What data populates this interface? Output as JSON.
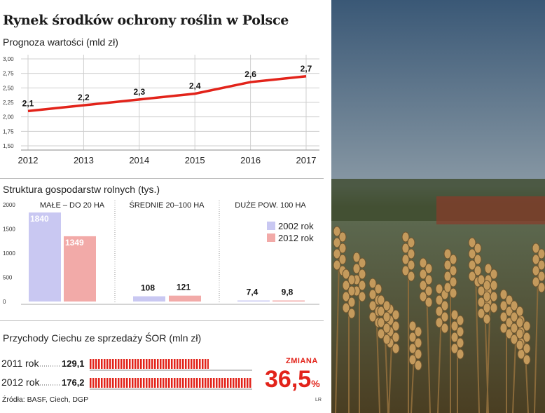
{
  "title": "Rynek środków ochrony roślin w Polsce",
  "colors": {
    "accent": "#e2231a",
    "bar2002": "#c9c8f2",
    "bar2012": "#f2aaa8",
    "line": "#e2231a"
  },
  "chart_data": [
    {
      "type": "line",
      "title": "Prognoza wartości (mld zł)",
      "x": [
        "2012",
        "2013",
        "2014",
        "2015",
        "2016",
        "2017"
      ],
      "y": [
        2.1,
        2.2,
        2.3,
        2.4,
        2.6,
        2.7
      ],
      "data_labels": [
        "2,1",
        "2,2",
        "2,3",
        "2,4",
        "2,6",
        "2,7"
      ],
      "yticks": [
        "1,50",
        "1,75",
        "2,00",
        "2,25",
        "2,50",
        "2,75",
        "3,00"
      ],
      "ylim": [
        1.5,
        3.0
      ],
      "grid": true
    },
    {
      "type": "bar",
      "title": "Struktura gospodarstw rolnych (tys.)",
      "categories": [
        "MAŁE – DO 20 HA",
        "ŚREDNIE 20–100 HA",
        "DUŻE POW. 100 HA"
      ],
      "series": [
        {
          "name": "2002 rok",
          "values": [
            1840,
            108,
            7.4
          ],
          "labels": [
            "1840",
            "108",
            "7,4"
          ]
        },
        {
          "name": "2012 rok",
          "values": [
            1349,
            121,
            9.8
          ],
          "labels": [
            "1349",
            "121",
            "9,8"
          ]
        }
      ],
      "yticks": [
        "0",
        "500",
        "1000",
        "1500",
        "2000"
      ],
      "ylim": [
        0,
        2000
      ]
    },
    {
      "type": "bar",
      "title": "Przychody Ciechu ze sprzedaży ŚOR (mln zł)",
      "categories": [
        "2011 rok",
        "2012 rok"
      ],
      "values": [
        129.1,
        176.2
      ],
      "labels": [
        "129,1",
        "176,2"
      ]
    }
  ],
  "change": {
    "label": "ZMIANA",
    "value": "36,5",
    "unit": "%"
  },
  "source": "Źródła: BASF, Ciech, DGP",
  "credit": "LR"
}
